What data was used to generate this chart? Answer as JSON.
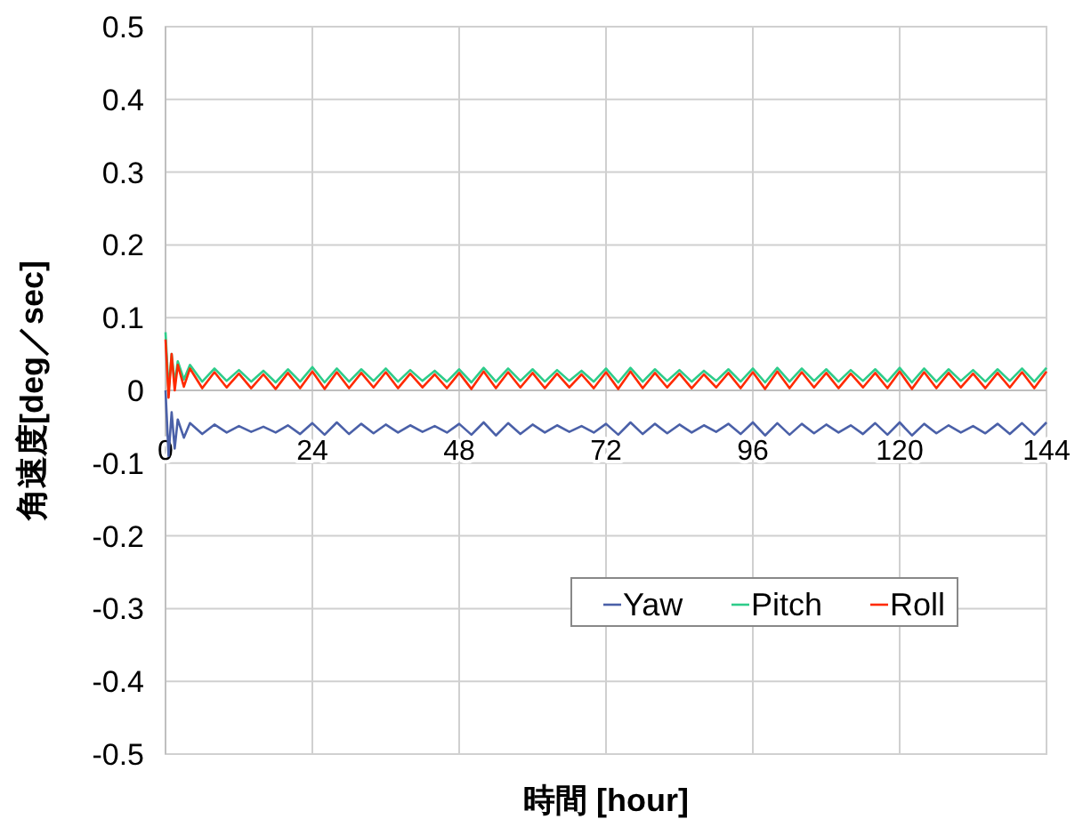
{
  "chart_data": {
    "type": "line",
    "xlabel": "時間 [hour]",
    "ylabel": "角速度[deg／sec]",
    "xlim": [
      0,
      144
    ],
    "xticks": [
      0,
      24,
      48,
      72,
      96,
      120,
      144
    ],
    "ylim": [
      -0.5,
      0.5
    ],
    "yticks": [
      0.5,
      0.4,
      0.3,
      0.2,
      0.1,
      0,
      -0.1,
      -0.2,
      -0.3,
      -0.4,
      -0.5
    ],
    "grid": true,
    "legend": "bottom right",
    "line_style": "solid",
    "marker": "none",
    "x": [
      0,
      0.5,
      1,
      1.5,
      2,
      3,
      4,
      6,
      8,
      10,
      12,
      14,
      16,
      18,
      20,
      22,
      24,
      26,
      28,
      30,
      32,
      34,
      36,
      38,
      40,
      42,
      44,
      46,
      48,
      50,
      52,
      54,
      56,
      58,
      60,
      62,
      64,
      66,
      68,
      70,
      72,
      74,
      76,
      78,
      80,
      82,
      84,
      86,
      88,
      90,
      92,
      94,
      96,
      98,
      100,
      102,
      104,
      106,
      108,
      110,
      112,
      114,
      116,
      118,
      120,
      122,
      124,
      126,
      128,
      130,
      132,
      134,
      136,
      138,
      140,
      142,
      144
    ],
    "series": [
      {
        "name": "Yaw",
        "color": "#4a60a8",
        "values": [
          0,
          -0.09,
          -0.03,
          -0.08,
          -0.04,
          -0.065,
          -0.045,
          -0.06,
          -0.047,
          -0.058,
          -0.049,
          -0.057,
          -0.05,
          -0.058,
          -0.048,
          -0.06,
          -0.045,
          -0.061,
          -0.044,
          -0.06,
          -0.046,
          -0.059,
          -0.047,
          -0.058,
          -0.048,
          -0.057,
          -0.049,
          -0.058,
          -0.046,
          -0.061,
          -0.044,
          -0.062,
          -0.045,
          -0.06,
          -0.047,
          -0.058,
          -0.048,
          -0.057,
          -0.049,
          -0.058,
          -0.046,
          -0.061,
          -0.044,
          -0.06,
          -0.046,
          -0.059,
          -0.047,
          -0.058,
          -0.048,
          -0.057,
          -0.046,
          -0.06,
          -0.044,
          -0.062,
          -0.045,
          -0.061,
          -0.046,
          -0.059,
          -0.047,
          -0.058,
          -0.048,
          -0.06,
          -0.045,
          -0.061,
          -0.044,
          -0.062,
          -0.046,
          -0.059,
          -0.048,
          -0.058,
          -0.049,
          -0.059,
          -0.046,
          -0.06,
          -0.045,
          -0.061,
          -0.044
        ]
      },
      {
        "name": "Pitch",
        "color": "#2ecc8a",
        "values": [
          0.08,
          0.0,
          0.05,
          0.01,
          0.04,
          0.015,
          0.035,
          0.012,
          0.03,
          0.013,
          0.028,
          0.012,
          0.027,
          0.011,
          0.029,
          0.012,
          0.032,
          0.011,
          0.03,
          0.012,
          0.029,
          0.013,
          0.03,
          0.012,
          0.028,
          0.013,
          0.027,
          0.012,
          0.029,
          0.011,
          0.031,
          0.012,
          0.03,
          0.013,
          0.029,
          0.012,
          0.028,
          0.013,
          0.027,
          0.012,
          0.03,
          0.011,
          0.031,
          0.012,
          0.029,
          0.013,
          0.028,
          0.012,
          0.027,
          0.013,
          0.029,
          0.012,
          0.03,
          0.011,
          0.031,
          0.012,
          0.03,
          0.013,
          0.029,
          0.012,
          0.028,
          0.013,
          0.029,
          0.012,
          0.031,
          0.011,
          0.03,
          0.012,
          0.029,
          0.013,
          0.028,
          0.012,
          0.029,
          0.013,
          0.03,
          0.012,
          0.031
        ]
      },
      {
        "name": "Roll",
        "color": "#ff2a00",
        "values": [
          0.07,
          -0.01,
          0.05,
          0.0,
          0.035,
          0.005,
          0.03,
          0.003,
          0.025,
          0.004,
          0.023,
          0.003,
          0.022,
          0.002,
          0.024,
          0.003,
          0.026,
          0.002,
          0.025,
          0.003,
          0.024,
          0.004,
          0.025,
          0.003,
          0.023,
          0.004,
          0.022,
          0.003,
          0.024,
          0.002,
          0.026,
          0.003,
          0.025,
          0.004,
          0.024,
          0.003,
          0.023,
          0.004,
          0.022,
          0.003,
          0.025,
          0.002,
          0.026,
          0.003,
          0.024,
          0.004,
          0.023,
          0.003,
          0.022,
          0.004,
          0.024,
          0.003,
          0.025,
          0.002,
          0.026,
          0.003,
          0.025,
          0.004,
          0.024,
          0.003,
          0.023,
          0.004,
          0.024,
          0.003,
          0.026,
          0.002,
          0.025,
          0.003,
          0.024,
          0.004,
          0.023,
          0.003,
          0.024,
          0.004,
          0.025,
          0.003,
          0.026
        ]
      }
    ]
  }
}
